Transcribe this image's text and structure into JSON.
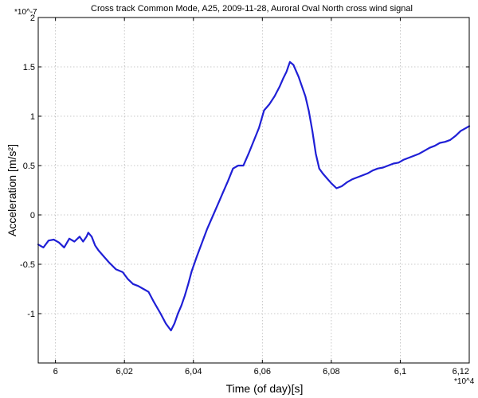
{
  "chart_data": {
    "type": "line",
    "title": "Cross track Common Mode, A25, 2009-11-28, Auroral Oval North cross wind signal",
    "xlabel": "Time (of day)[s]",
    "ylabel": "Acceleration [m/s²]",
    "x_multiplier": "*10^4",
    "y_multiplier": "*10^-7",
    "xlim": [
      5.995,
      6.12
    ],
    "ylim": [
      -1.5,
      2
    ],
    "grid": true,
    "x_ticks": [
      {
        "value": 6.0,
        "label": "6"
      },
      {
        "value": 6.02,
        "label": "6,02"
      },
      {
        "value": 6.04,
        "label": "6,04"
      },
      {
        "value": 6.06,
        "label": "6,06"
      },
      {
        "value": 6.08,
        "label": "6,08"
      },
      {
        "value": 6.1,
        "label": "6,1"
      },
      {
        "value": 6.12,
        "label": "6,12"
      }
    ],
    "y_ticks": [
      {
        "value": 2,
        "label": "2"
      },
      {
        "value": 1.5,
        "label": "1.5"
      },
      {
        "value": 1,
        "label": "1"
      },
      {
        "value": 0.5,
        "label": "0.5"
      },
      {
        "value": 0,
        "label": "0"
      },
      {
        "value": -0.5,
        "label": "-0.5"
      },
      {
        "value": -1,
        "label": "-1"
      }
    ],
    "series": [
      {
        "color": "#1f1fd6",
        "x": [
          5.995,
          5.9965,
          5.998,
          5.9995,
          6.001,
          6.0025,
          6.004,
          6.0055,
          6.007,
          6.008,
          6.009,
          6.0095,
          6.0105,
          6.0115,
          6.0125,
          6.014,
          6.0155,
          6.0175,
          6.0195,
          6.021,
          6.0225,
          6.024,
          6.0255,
          6.027,
          6.0285,
          6.0305,
          6.032,
          6.0335,
          6.0345,
          6.0355,
          6.0365,
          6.0375,
          6.0385,
          6.0395,
          6.041,
          6.0425,
          6.044,
          6.0455,
          6.047,
          6.0485,
          6.05,
          6.0515,
          6.053,
          6.0545,
          6.056,
          6.0575,
          6.059,
          6.0605,
          6.062,
          6.0635,
          6.065,
          6.066,
          6.067,
          6.068,
          6.069,
          6.0705,
          6.0715,
          6.0725,
          6.0735,
          6.0745,
          6.0755,
          6.0765,
          6.0775,
          6.0785,
          6.08,
          6.0815,
          6.083,
          6.0845,
          6.086,
          6.0875,
          6.089,
          6.0905,
          6.092,
          6.0935,
          6.095,
          6.0965,
          6.098,
          6.0995,
          6.101,
          6.1025,
          6.104,
          6.1055,
          6.107,
          6.1085,
          6.11,
          6.1115,
          6.113,
          6.1145,
          6.116,
          6.1175,
          6.119,
          6.12
        ],
        "y": [
          -0.3,
          -0.33,
          -0.26,
          -0.25,
          -0.28,
          -0.33,
          -0.24,
          -0.27,
          -0.22,
          -0.27,
          -0.22,
          -0.18,
          -0.22,
          -0.31,
          -0.36,
          -0.42,
          -0.48,
          -0.55,
          -0.58,
          -0.65,
          -0.7,
          -0.72,
          -0.75,
          -0.78,
          -0.88,
          -1.0,
          -1.1,
          -1.17,
          -1.1,
          -1.0,
          -0.92,
          -0.82,
          -0.7,
          -0.57,
          -0.42,
          -0.28,
          -0.14,
          -0.02,
          0.1,
          0.22,
          0.34,
          0.47,
          0.5,
          0.5,
          0.62,
          0.75,
          0.88,
          1.06,
          1.12,
          1.2,
          1.3,
          1.38,
          1.45,
          1.55,
          1.52,
          1.4,
          1.3,
          1.2,
          1.05,
          0.85,
          0.62,
          0.47,
          0.42,
          0.38,
          0.32,
          0.27,
          0.29,
          0.33,
          0.36,
          0.38,
          0.4,
          0.42,
          0.45,
          0.47,
          0.48,
          0.5,
          0.52,
          0.53,
          0.56,
          0.58,
          0.6,
          0.62,
          0.65,
          0.68,
          0.7,
          0.73,
          0.74,
          0.76,
          0.8,
          0.85,
          0.88,
          0.9
        ]
      }
    ]
  }
}
